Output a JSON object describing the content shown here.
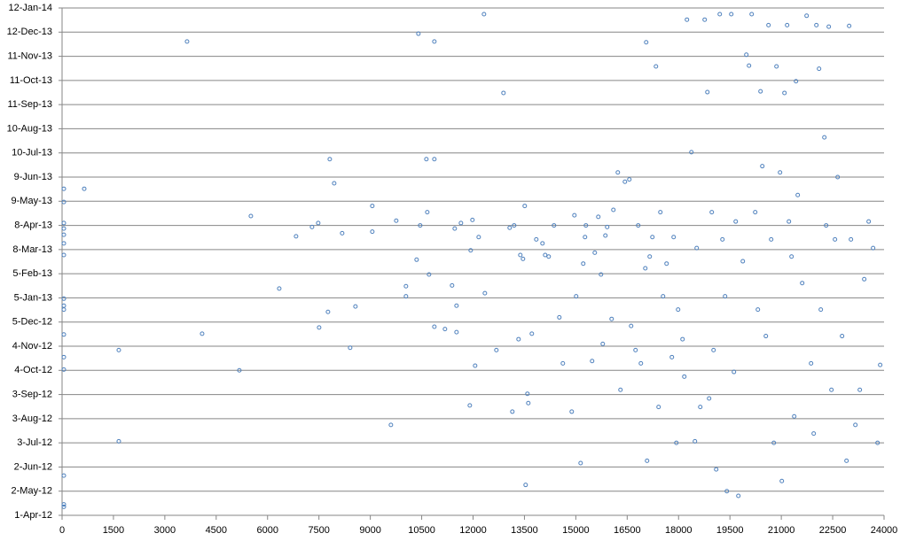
{
  "chart_data": {
    "type": "scatter",
    "color": "#4f81bd",
    "grid": true,
    "xlim": [
      0,
      24000
    ],
    "xticks": [
      0,
      1500,
      3000,
      4500,
      6000,
      7500,
      9000,
      10500,
      12000,
      13500,
      15000,
      16500,
      18000,
      19500,
      21000,
      22500,
      24000
    ],
    "ylim": [
      41000,
      41651
    ],
    "yticks": [
      {
        "value": 41000,
        "label": "1-Apr-12"
      },
      {
        "value": 41031,
        "label": "2-May-12"
      },
      {
        "value": 41062,
        "label": "2-Jun-12"
      },
      {
        "value": 41093,
        "label": "3-Jul-12"
      },
      {
        "value": 41124,
        "label": "3-Aug-12"
      },
      {
        "value": 41155,
        "label": "3-Sep-12"
      },
      {
        "value": 41186,
        "label": "4-Oct-12"
      },
      {
        "value": 41217,
        "label": "4-Nov-12"
      },
      {
        "value": 41248,
        "label": "5-Dec-12"
      },
      {
        "value": 41279,
        "label": "5-Jan-13"
      },
      {
        "value": 41310,
        "label": "5-Feb-13"
      },
      {
        "value": 41341,
        "label": "8-Mar-13"
      },
      {
        "value": 41372,
        "label": "8-Apr-13"
      },
      {
        "value": 41403,
        "label": "9-May-13"
      },
      {
        "value": 41434,
        "label": "9-Jun-13"
      },
      {
        "value": 41465,
        "label": "10-Jul-13"
      },
      {
        "value": 41496,
        "label": "10-Aug-13"
      },
      {
        "value": 41527,
        "label": "11-Sep-13"
      },
      {
        "value": 41558,
        "label": "11-Oct-13"
      },
      {
        "value": 41589,
        "label": "11-Nov-13"
      },
      {
        "value": 41620,
        "label": "12-Dec-13"
      },
      {
        "value": 41651,
        "label": "12-Jan-14"
      }
    ],
    "x": [
      52,
      52,
      52,
      52,
      52,
      52,
      52,
      52,
      52,
      52,
      52,
      52,
      52,
      52,
      52,
      52,
      647,
      1656,
      1656,
      3649,
      4089,
      5176,
      5512,
      6341,
      6832,
      7298,
      7479,
      7505,
      7764,
      7816,
      7945,
      8178,
      8411,
      8566,
      9058,
      9058,
      9601,
      9757,
      10041,
      10041,
      10352,
      10404,
      10456,
      10637,
      10663,
      10714,
      10870,
      10870,
      10870,
      11180,
      11387,
      11465,
      11517,
      11517,
      11646,
      11931,
      11982,
      11905,
      12060,
      12164,
      12319,
      12345,
      12681,
      12888,
      13069,
      13147,
      13199,
      13328,
      13380,
      13458,
      13509,
      13535,
      13587,
      13613,
      13716,
      13846,
      14027,
      14105,
      14208,
      14363,
      14519,
      14622,
      14881,
      14959,
      15010,
      15140,
      15217,
      15269,
      15295,
      15476,
      15554,
      15657,
      15735,
      15787,
      15864,
      15916,
      16046,
      16097,
      16227,
      16304,
      16434,
      16563,
      16615,
      16744,
      16822,
      16900,
      17029,
      17055,
      17081,
      17158,
      17236,
      17340,
      17417,
      17469,
      17547,
      17650,
      17805,
      17857,
      17935,
      17987,
      18116,
      18168,
      18245,
      18375,
      18478,
      18530,
      18634,
      18763,
      18841,
      18892,
      18970,
      19022,
      19099,
      19203,
      19281,
      19358,
      19410,
      19539,
      19617,
      19669,
      19746,
      19876,
      19979,
      20057,
      20135,
      20238,
      20316,
      20393,
      20445,
      20549,
      20626,
      20704,
      20782,
      20859,
      20963,
      21015,
      21092,
      21170,
      21222,
      21299,
      21377,
      21429,
      21480,
      21610,
      21739,
      21869,
      21946,
      22024,
      22102,
      22153,
      22257,
      22309,
      22386,
      22464,
      22567,
      22645,
      22774,
      22904,
      22981,
      23033,
      23163,
      23292,
      23421,
      23551,
      23680,
      23810,
      23887
    ],
    "y": [
      41419,
      41402,
      41375,
      41368,
      41360,
      41349,
      41334,
      41278,
      41269,
      41264,
      41232,
      41203,
      41187,
      41051,
      41014,
      41011,
      41419,
      41212,
      41095,
      41608,
      41233,
      41186,
      41384,
      41291,
      41358,
      41370,
      41375,
      41241,
      41261,
      41457,
      41426,
      41362,
      41215,
      41268,
      41397,
      41364,
      41116,
      41378,
      41294,
      41281,
      41328,
      41618,
      41372,
      41457,
      41389,
      41309,
      41457,
      41608,
      41242,
      41239,
      41295,
      41368,
      41269,
      41235,
      41375,
      41340,
      41379,
      41141,
      41192,
      41357,
      41643,
      41285,
      41212,
      41542,
      41369,
      41133,
      41372,
      41226,
      41334,
      41329,
      41397,
      41039,
      41156,
      41144,
      41233,
      41354,
      41349,
      41334,
      41332,
      41372,
      41254,
      41195,
      41133,
      41385,
      41281,
      41067,
      41323,
      41357,
      41372,
      41198,
      41337,
      41383,
      41309,
      41220,
      41359,
      41370,
      41252,
      41392,
      41440,
      41161,
      41428,
      41431,
      41243,
      41212,
      41372,
      41195,
      41317,
      41607,
      41070,
      41332,
      41357,
      41576,
      41139,
      41389,
      41281,
      41323,
      41203,
      41357,
      41093,
      41264,
      41226,
      41178,
      41636,
      41466,
      41095,
      41343,
      41139,
      41636,
      41543,
      41150,
      41389,
      41212,
      41059,
      41643,
      41354,
      41281,
      41031,
      41643,
      41184,
      41377,
      41025,
      41326,
      41591,
      41577,
      41643,
      41389,
      41264,
      41544,
      41448,
      41230,
      41629,
      41354,
      41093,
      41576,
      41440,
      41044,
      41542,
      41629,
      41377,
      41332,
      41127,
      41557,
      41411,
      41298,
      41641,
      41195,
      41105,
      41629,
      41573,
      41264,
      41485,
      41372,
      41627,
      41161,
      41354,
      41434,
      41230,
      41070,
      41628,
      41354,
      41116,
      41161,
      41303,
      41377,
      41343,
      41093,
      41193
    ]
  }
}
